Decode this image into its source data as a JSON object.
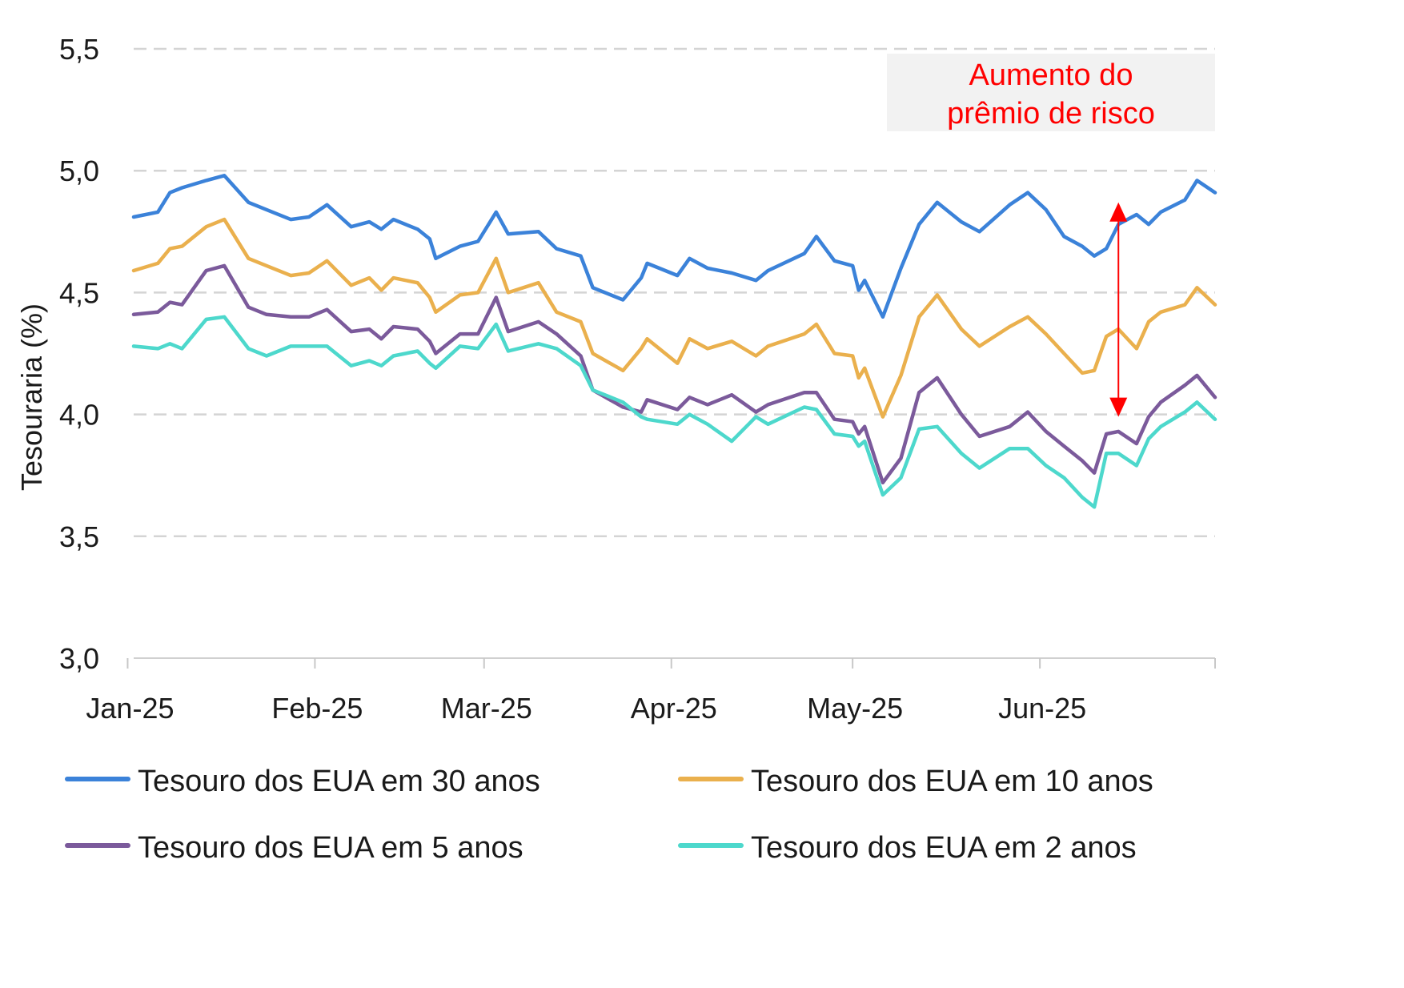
{
  "chart_data": {
    "type": "line",
    "title": "",
    "xlabel": "",
    "ylabel": "Tesouraria (%)",
    "ylim": [
      3.0,
      5.5
    ],
    "yticks": [
      3.0,
      3.5,
      4.0,
      4.5,
      5.0,
      5.5
    ],
    "ytick_labels": [
      "3,0",
      "3,5",
      "4,0",
      "4,5",
      "5,0",
      "5,5"
    ],
    "x_range": [
      "2025-01-02",
      "2025-06-30"
    ],
    "xticks": [
      "2025-01-01",
      "2025-02-01",
      "2025-03-01",
      "2025-04-01",
      "2025-05-01",
      "2025-06-01"
    ],
    "xtick_labels": [
      "Jan-25",
      "Feb-25",
      "Mar-25",
      "Apr-25",
      "May-25",
      "Jun-25"
    ],
    "grid": "horizontal-dashed",
    "legend_position": "bottom",
    "series": [
      {
        "name": "Tesouro dos EUA em 30 anos",
        "color": "#3b82d9",
        "points": [
          [
            "2025-01-02",
            4.81
          ],
          [
            "2025-01-06",
            4.83
          ],
          [
            "2025-01-08",
            4.91
          ],
          [
            "2025-01-10",
            4.93
          ],
          [
            "2025-01-14",
            4.96
          ],
          [
            "2025-01-17",
            4.98
          ],
          [
            "2025-01-21",
            4.87
          ],
          [
            "2025-01-24",
            4.84
          ],
          [
            "2025-01-28",
            4.8
          ],
          [
            "2025-01-31",
            4.81
          ],
          [
            "2025-02-03",
            4.86
          ],
          [
            "2025-02-07",
            4.77
          ],
          [
            "2025-02-10",
            4.79
          ],
          [
            "2025-02-12",
            4.76
          ],
          [
            "2025-02-14",
            4.8
          ],
          [
            "2025-02-18",
            4.76
          ],
          [
            "2025-02-20",
            4.72
          ],
          [
            "2025-02-21",
            4.64
          ],
          [
            "2025-02-25",
            4.69
          ],
          [
            "2025-02-28",
            4.71
          ],
          [
            "2025-03-03",
            4.83
          ],
          [
            "2025-03-05",
            4.74
          ],
          [
            "2025-03-10",
            4.75
          ],
          [
            "2025-03-13",
            4.68
          ],
          [
            "2025-03-17",
            4.65
          ],
          [
            "2025-03-19",
            4.52
          ],
          [
            "2025-03-24",
            4.47
          ],
          [
            "2025-03-27",
            4.56
          ],
          [
            "2025-03-28",
            4.62
          ],
          [
            "2025-04-02",
            4.57
          ],
          [
            "2025-04-04",
            4.64
          ],
          [
            "2025-04-07",
            4.6
          ],
          [
            "2025-04-11",
            4.58
          ],
          [
            "2025-04-15",
            4.55
          ],
          [
            "2025-04-17",
            4.59
          ],
          [
            "2025-04-23",
            4.66
          ],
          [
            "2025-04-25",
            4.73
          ],
          [
            "2025-04-28",
            4.63
          ],
          [
            "2025-05-01",
            4.61
          ],
          [
            "2025-05-02",
            4.51
          ],
          [
            "2025-05-03",
            4.55
          ],
          [
            "2025-05-06",
            4.4
          ],
          [
            "2025-05-09",
            4.6
          ],
          [
            "2025-05-12",
            4.78
          ],
          [
            "2025-05-15",
            4.87
          ],
          [
            "2025-05-19",
            4.79
          ],
          [
            "2025-05-22",
            4.75
          ],
          [
            "2025-05-27",
            4.86
          ],
          [
            "2025-05-30",
            4.91
          ],
          [
            "2025-06-02",
            4.84
          ],
          [
            "2025-06-05",
            4.73
          ],
          [
            "2025-06-08",
            4.69
          ],
          [
            "2025-06-10",
            4.65
          ],
          [
            "2025-06-12",
            4.68
          ],
          [
            "2025-06-14",
            4.78
          ],
          [
            "2025-06-17",
            4.82
          ],
          [
            "2025-06-19",
            4.78
          ],
          [
            "2025-06-21",
            4.83
          ],
          [
            "2025-06-25",
            4.88
          ],
          [
            "2025-06-27",
            4.96
          ],
          [
            "2025-06-30",
            4.91
          ]
        ]
      },
      {
        "name": "Tesouro dos EUA em 10 anos",
        "color": "#eab04d",
        "points": [
          [
            "2025-01-02",
            4.59
          ],
          [
            "2025-01-06",
            4.62
          ],
          [
            "2025-01-08",
            4.68
          ],
          [
            "2025-01-10",
            4.69
          ],
          [
            "2025-01-14",
            4.77
          ],
          [
            "2025-01-17",
            4.8
          ],
          [
            "2025-01-21",
            4.64
          ],
          [
            "2025-01-24",
            4.61
          ],
          [
            "2025-01-28",
            4.57
          ],
          [
            "2025-01-31",
            4.58
          ],
          [
            "2025-02-03",
            4.63
          ],
          [
            "2025-02-07",
            4.53
          ],
          [
            "2025-02-10",
            4.56
          ],
          [
            "2025-02-12",
            4.51
          ],
          [
            "2025-02-14",
            4.56
          ],
          [
            "2025-02-18",
            4.54
          ],
          [
            "2025-02-20",
            4.48
          ],
          [
            "2025-02-21",
            4.42
          ],
          [
            "2025-02-25",
            4.49
          ],
          [
            "2025-02-28",
            4.5
          ],
          [
            "2025-03-03",
            4.64
          ],
          [
            "2025-03-05",
            4.5
          ],
          [
            "2025-03-10",
            4.54
          ],
          [
            "2025-03-13",
            4.42
          ],
          [
            "2025-03-17",
            4.38
          ],
          [
            "2025-03-19",
            4.25
          ],
          [
            "2025-03-24",
            4.18
          ],
          [
            "2025-03-27",
            4.27
          ],
          [
            "2025-03-28",
            4.31
          ],
          [
            "2025-04-02",
            4.21
          ],
          [
            "2025-04-04",
            4.31
          ],
          [
            "2025-04-07",
            4.27
          ],
          [
            "2025-04-11",
            4.3
          ],
          [
            "2025-04-15",
            4.24
          ],
          [
            "2025-04-17",
            4.28
          ],
          [
            "2025-04-23",
            4.33
          ],
          [
            "2025-04-25",
            4.37
          ],
          [
            "2025-04-28",
            4.25
          ],
          [
            "2025-05-01",
            4.24
          ],
          [
            "2025-05-02",
            4.15
          ],
          [
            "2025-05-03",
            4.19
          ],
          [
            "2025-05-06",
            3.99
          ],
          [
            "2025-05-09",
            4.16
          ],
          [
            "2025-05-12",
            4.4
          ],
          [
            "2025-05-15",
            4.49
          ],
          [
            "2025-05-19",
            4.35
          ],
          [
            "2025-05-22",
            4.28
          ],
          [
            "2025-05-27",
            4.36
          ],
          [
            "2025-05-30",
            4.4
          ],
          [
            "2025-06-02",
            4.33
          ],
          [
            "2025-06-05",
            4.25
          ],
          [
            "2025-06-08",
            4.17
          ],
          [
            "2025-06-10",
            4.18
          ],
          [
            "2025-06-12",
            4.32
          ],
          [
            "2025-06-14",
            4.35
          ],
          [
            "2025-06-17",
            4.27
          ],
          [
            "2025-06-19",
            4.38
          ],
          [
            "2025-06-21",
            4.42
          ],
          [
            "2025-06-25",
            4.45
          ],
          [
            "2025-06-27",
            4.52
          ],
          [
            "2025-06-30",
            4.45
          ]
        ]
      },
      {
        "name": "Tesouro dos EUA em 5 anos",
        "color": "#7b5a9b",
        "points": [
          [
            "2025-01-02",
            4.41
          ],
          [
            "2025-01-06",
            4.42
          ],
          [
            "2025-01-08",
            4.46
          ],
          [
            "2025-01-10",
            4.45
          ],
          [
            "2025-01-14",
            4.59
          ],
          [
            "2025-01-17",
            4.61
          ],
          [
            "2025-01-21",
            4.44
          ],
          [
            "2025-01-24",
            4.41
          ],
          [
            "2025-01-28",
            4.4
          ],
          [
            "2025-01-31",
            4.4
          ],
          [
            "2025-02-03",
            4.43
          ],
          [
            "2025-02-07",
            4.34
          ],
          [
            "2025-02-10",
            4.35
          ],
          [
            "2025-02-12",
            4.31
          ],
          [
            "2025-02-14",
            4.36
          ],
          [
            "2025-02-18",
            4.35
          ],
          [
            "2025-02-20",
            4.3
          ],
          [
            "2025-02-21",
            4.25
          ],
          [
            "2025-02-25",
            4.33
          ],
          [
            "2025-02-28",
            4.33
          ],
          [
            "2025-03-03",
            4.48
          ],
          [
            "2025-03-05",
            4.34
          ],
          [
            "2025-03-10",
            4.38
          ],
          [
            "2025-03-13",
            4.33
          ],
          [
            "2025-03-17",
            4.24
          ],
          [
            "2025-03-19",
            4.1
          ],
          [
            "2025-03-24",
            4.03
          ],
          [
            "2025-03-27",
            4.01
          ],
          [
            "2025-03-28",
            4.06
          ],
          [
            "2025-04-02",
            4.02
          ],
          [
            "2025-04-04",
            4.07
          ],
          [
            "2025-04-07",
            4.04
          ],
          [
            "2025-04-11",
            4.08
          ],
          [
            "2025-04-15",
            4.01
          ],
          [
            "2025-04-17",
            4.04
          ],
          [
            "2025-04-23",
            4.09
          ],
          [
            "2025-04-25",
            4.09
          ],
          [
            "2025-04-28",
            3.98
          ],
          [
            "2025-05-01",
            3.97
          ],
          [
            "2025-05-02",
            3.92
          ],
          [
            "2025-05-03",
            3.95
          ],
          [
            "2025-05-06",
            3.72
          ],
          [
            "2025-05-09",
            3.82
          ],
          [
            "2025-05-12",
            4.09
          ],
          [
            "2025-05-15",
            4.15
          ],
          [
            "2025-05-19",
            4.0
          ],
          [
            "2025-05-22",
            3.91
          ],
          [
            "2025-05-27",
            3.95
          ],
          [
            "2025-05-30",
            4.01
          ],
          [
            "2025-06-02",
            3.93
          ],
          [
            "2025-06-05",
            3.87
          ],
          [
            "2025-06-08",
            3.81
          ],
          [
            "2025-06-10",
            3.76
          ],
          [
            "2025-06-12",
            3.92
          ],
          [
            "2025-06-14",
            3.93
          ],
          [
            "2025-06-17",
            3.88
          ],
          [
            "2025-06-19",
            3.99
          ],
          [
            "2025-06-21",
            4.05
          ],
          [
            "2025-06-25",
            4.12
          ],
          [
            "2025-06-27",
            4.16
          ],
          [
            "2025-06-30",
            4.07
          ]
        ]
      },
      {
        "name": "Tesouro dos EUA em 2 anos",
        "color": "#4dd8cc",
        "points": [
          [
            "2025-01-02",
            4.28
          ],
          [
            "2025-01-06",
            4.27
          ],
          [
            "2025-01-08",
            4.29
          ],
          [
            "2025-01-10",
            4.27
          ],
          [
            "2025-01-14",
            4.39
          ],
          [
            "2025-01-17",
            4.4
          ],
          [
            "2025-01-21",
            4.27
          ],
          [
            "2025-01-24",
            4.24
          ],
          [
            "2025-01-28",
            4.28
          ],
          [
            "2025-01-31",
            4.28
          ],
          [
            "2025-02-03",
            4.28
          ],
          [
            "2025-02-07",
            4.2
          ],
          [
            "2025-02-10",
            4.22
          ],
          [
            "2025-02-12",
            4.2
          ],
          [
            "2025-02-14",
            4.24
          ],
          [
            "2025-02-18",
            4.26
          ],
          [
            "2025-02-20",
            4.21
          ],
          [
            "2025-02-21",
            4.19
          ],
          [
            "2025-02-25",
            4.28
          ],
          [
            "2025-02-28",
            4.27
          ],
          [
            "2025-03-03",
            4.37
          ],
          [
            "2025-03-05",
            4.26
          ],
          [
            "2025-03-10",
            4.29
          ],
          [
            "2025-03-13",
            4.27
          ],
          [
            "2025-03-17",
            4.2
          ],
          [
            "2025-03-19",
            4.1
          ],
          [
            "2025-03-24",
            4.05
          ],
          [
            "2025-03-27",
            3.99
          ],
          [
            "2025-03-28",
            3.98
          ],
          [
            "2025-04-02",
            3.96
          ],
          [
            "2025-04-04",
            4.0
          ],
          [
            "2025-04-07",
            3.96
          ],
          [
            "2025-04-11",
            3.89
          ],
          [
            "2025-04-15",
            3.99
          ],
          [
            "2025-04-17",
            3.96
          ],
          [
            "2025-04-23",
            4.03
          ],
          [
            "2025-04-25",
            4.02
          ],
          [
            "2025-04-28",
            3.92
          ],
          [
            "2025-05-01",
            3.91
          ],
          [
            "2025-05-02",
            3.87
          ],
          [
            "2025-05-03",
            3.89
          ],
          [
            "2025-05-06",
            3.67
          ],
          [
            "2025-05-09",
            3.74
          ],
          [
            "2025-05-12",
            3.94
          ],
          [
            "2025-05-15",
            3.95
          ],
          [
            "2025-05-19",
            3.84
          ],
          [
            "2025-05-22",
            3.78
          ],
          [
            "2025-05-27",
            3.86
          ],
          [
            "2025-05-30",
            3.86
          ],
          [
            "2025-06-02",
            3.79
          ],
          [
            "2025-06-05",
            3.74
          ],
          [
            "2025-06-08",
            3.66
          ],
          [
            "2025-06-10",
            3.62
          ],
          [
            "2025-06-12",
            3.84
          ],
          [
            "2025-06-14",
            3.84
          ],
          [
            "2025-06-17",
            3.79
          ],
          [
            "2025-06-19",
            3.9
          ],
          [
            "2025-06-21",
            3.95
          ],
          [
            "2025-06-25",
            4.01
          ],
          [
            "2025-06-27",
            4.05
          ],
          [
            "2025-06-30",
            3.98
          ]
        ]
      }
    ],
    "annotation": {
      "text_line1": "Aumento do",
      "text_line2": "prêmio de risco",
      "color": "#ff0000",
      "arrow_date": "2025-06-14",
      "arrow_from": 4.87,
      "arrow_to": 3.99
    }
  }
}
